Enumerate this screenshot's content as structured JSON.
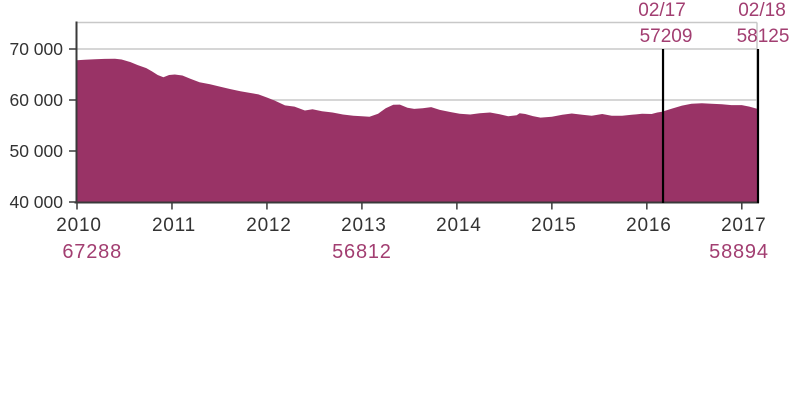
{
  "chart_data": {
    "type": "area",
    "title": "",
    "xlabel": "",
    "ylabel": "",
    "grid": true,
    "legend": false,
    "xlim": [
      2010,
      2017.16
    ],
    "ylim": [
      40000,
      75000
    ],
    "colors": {
      "area": "#993366",
      "label_text": "#A23E71",
      "axis": "#3A3A3A",
      "axis_text": "#333333",
      "gridline": "#C8C8C8",
      "event_line": "#000000"
    },
    "y_axis": {
      "ticks": [
        {
          "label": "70 000",
          "value": 70000
        },
        {
          "label": "60 000",
          "value": 60000
        },
        {
          "label": "50 000",
          "value": 50000
        },
        {
          "label": "40 000",
          "value": 40000
        }
      ]
    },
    "x_axis": {
      "ticks": [
        {
          "label": "2010",
          "year": 2010
        },
        {
          "label": "2011",
          "year": 2011
        },
        {
          "label": "2012",
          "year": 2012
        },
        {
          "label": "2013",
          "year": 2013
        },
        {
          "label": "2014",
          "year": 2014
        },
        {
          "label": "2015",
          "year": 2015
        },
        {
          "label": "2016",
          "year": 2016
        },
        {
          "label": "2017",
          "year": 2017
        }
      ]
    },
    "series": [
      {
        "name": "main-series",
        "points": [
          [
            2010.0,
            67800
          ],
          [
            2010.08,
            67900
          ],
          [
            2010.19,
            67980
          ],
          [
            2010.29,
            68050
          ],
          [
            2010.4,
            68100
          ],
          [
            2010.47,
            67950
          ],
          [
            2010.56,
            67450
          ],
          [
            2010.64,
            66850
          ],
          [
            2010.73,
            66250
          ],
          [
            2010.79,
            65600
          ],
          [
            2010.85,
            64900
          ],
          [
            2010.91,
            64450
          ],
          [
            2010.97,
            64900
          ],
          [
            2011.03,
            65000
          ],
          [
            2011.11,
            64800
          ],
          [
            2011.19,
            64200
          ],
          [
            2011.29,
            63500
          ],
          [
            2011.4,
            63100
          ],
          [
            2011.51,
            62600
          ],
          [
            2011.61,
            62150
          ],
          [
            2011.72,
            61700
          ],
          [
            2011.82,
            61400
          ],
          [
            2011.91,
            61100
          ],
          [
            2012.0,
            60500
          ],
          [
            2012.08,
            59900
          ],
          [
            2012.19,
            58950
          ],
          [
            2012.29,
            58700
          ],
          [
            2012.4,
            57950
          ],
          [
            2012.48,
            58200
          ],
          [
            2012.58,
            57800
          ],
          [
            2012.69,
            57550
          ],
          [
            2012.8,
            57150
          ],
          [
            2012.91,
            56900
          ],
          [
            2013.0,
            56800
          ],
          [
            2013.08,
            56700
          ],
          [
            2013.17,
            57300
          ],
          [
            2013.25,
            58400
          ],
          [
            2013.33,
            59050
          ],
          [
            2013.4,
            59100
          ],
          [
            2013.48,
            58500
          ],
          [
            2013.55,
            58250
          ],
          [
            2013.64,
            58400
          ],
          [
            2013.73,
            58600
          ],
          [
            2013.82,
            58050
          ],
          [
            2013.93,
            57650
          ],
          [
            2014.03,
            57300
          ],
          [
            2014.14,
            57150
          ],
          [
            2014.24,
            57400
          ],
          [
            2014.35,
            57550
          ],
          [
            2014.45,
            57200
          ],
          [
            2014.54,
            56800
          ],
          [
            2014.63,
            57000
          ],
          [
            2014.66,
            57400
          ],
          [
            2014.72,
            57250
          ],
          [
            2014.8,
            56850
          ],
          [
            2014.88,
            56550
          ],
          [
            2015.0,
            56700
          ],
          [
            2015.11,
            57100
          ],
          [
            2015.21,
            57350
          ],
          [
            2015.32,
            57100
          ],
          [
            2015.42,
            56900
          ],
          [
            2015.53,
            57250
          ],
          [
            2015.63,
            56900
          ],
          [
            2015.74,
            56900
          ],
          [
            2015.84,
            57100
          ],
          [
            2015.95,
            57300
          ],
          [
            2016.05,
            57250
          ],
          [
            2016.11,
            57550
          ],
          [
            2016.16,
            57700
          ],
          [
            2016.26,
            58300
          ],
          [
            2016.37,
            58900
          ],
          [
            2016.47,
            59250
          ],
          [
            2016.58,
            59350
          ],
          [
            2016.68,
            59250
          ],
          [
            2016.79,
            59150
          ],
          [
            2016.89,
            59000
          ],
          [
            2017.0,
            59000
          ],
          [
            2017.08,
            58700
          ],
          [
            2017.16,
            58300
          ]
        ]
      }
    ],
    "annotations": [
      {
        "date": "02/17",
        "value": 57209,
        "value_label": "57209",
        "year": 2016.16
      },
      {
        "date": "02/18",
        "value": 58125,
        "value_label": "58125",
        "year": 2017.16
      }
    ],
    "point_labels": [
      {
        "text": "67288",
        "year": 2010.16
      },
      {
        "text": "56812",
        "year": 2013.0
      },
      {
        "text": "58894",
        "year": 2016.97
      }
    ]
  }
}
